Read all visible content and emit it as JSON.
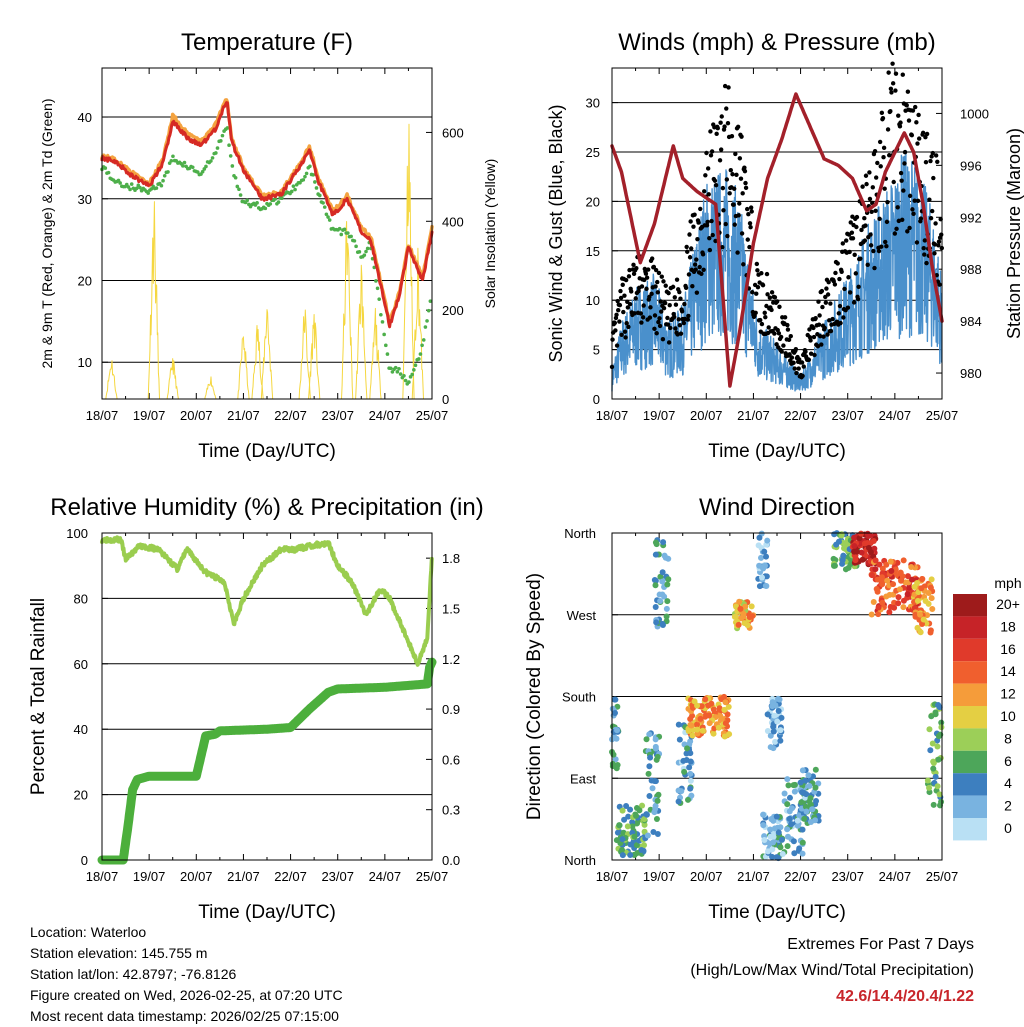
{
  "chart_data": [
    {
      "type": "line",
      "title": "Temperature (F)",
      "xlabel": "Time (Day/UTC)",
      "ylabel": "2m & 9m T (Red, Orange) & 2m Td (Green)",
      "y2label": "Solar Insolation (Yellow)",
      "x_ticks": [
        "18/07",
        "19/07",
        "20/07",
        "21/07",
        "22/07",
        "23/07",
        "24/07",
        "25/07"
      ],
      "ylim": [
        5.5,
        46
      ],
      "y_ticks": [
        10,
        20,
        30,
        40
      ],
      "y2lim": [
        0,
        745
      ],
      "y2_ticks": [
        0,
        200,
        400,
        600
      ],
      "series": [
        {
          "name": "2m T",
          "color": "#d62a24",
          "x": [
            0,
            0.3,
            0.6,
            1,
            1.3,
            1.5,
            1.8,
            2.1,
            2.4,
            2.65,
            2.75,
            3,
            3.4,
            3.8,
            4.2,
            4.4,
            4.6,
            4.9,
            5.2,
            5.5,
            5.7,
            6.1,
            6.3,
            6.5,
            6.8,
            7
          ],
          "y": [
            35,
            34.5,
            33,
            31.5,
            34.5,
            39.5,
            37.5,
            36.5,
            38.5,
            42,
            37,
            33.5,
            30,
            30.5,
            34,
            36,
            32,
            28,
            30,
            26,
            25,
            14.5,
            18,
            24,
            20,
            26
          ]
        },
        {
          "name": "9m T",
          "color": "#f4a340",
          "x": [
            0,
            0.3,
            0.6,
            1,
            1.3,
            1.5,
            1.8,
            2.1,
            2.4,
            2.65,
            2.75,
            3,
            3.4,
            3.8,
            4.2,
            4.4,
            4.6,
            4.9,
            5.2,
            5.5,
            5.7,
            6.1,
            6.3,
            6.5,
            6.8,
            7
          ],
          "y": [
            35.2,
            34.8,
            33.3,
            31.8,
            34.9,
            40.2,
            38,
            37,
            39,
            42.4,
            37.4,
            33.8,
            30.3,
            30.8,
            34.3,
            36.4,
            32.4,
            28.4,
            30.4,
            26.4,
            25.4,
            14.9,
            18.4,
            24.4,
            20.4,
            26.4
          ]
        },
        {
          "name": "2m Td",
          "color": "#4daf4a",
          "x": [
            0,
            0.3,
            0.6,
            1,
            1.3,
            1.5,
            1.8,
            2.1,
            2.4,
            2.65,
            2.75,
            3,
            3.4,
            3.8,
            4.2,
            4.4,
            4.6,
            4.9,
            5.2,
            5.5,
            5.7,
            6.1,
            6.3,
            6.5,
            6.8,
            7
          ],
          "y": [
            34,
            32,
            31.5,
            31,
            32,
            35,
            34,
            33,
            35.5,
            39,
            34,
            29.5,
            29,
            30,
            32,
            34,
            30.5,
            26,
            26,
            23,
            24.5,
            9,
            9,
            7.5,
            12,
            19
          ]
        }
      ],
      "solar_insolation": {
        "color": "#f5d740",
        "peaks": [
          [
            0.2,
            110
          ],
          [
            1.1,
            520
          ],
          [
            1.5,
            110
          ],
          [
            2.3,
            60
          ],
          [
            3.0,
            180
          ],
          [
            3.3,
            195
          ],
          [
            3.5,
            260
          ],
          [
            4.3,
            240
          ],
          [
            4.5,
            230
          ],
          [
            5.2,
            480
          ],
          [
            5.5,
            340
          ],
          [
            5.8,
            220
          ],
          [
            6.5,
            720
          ],
          [
            6.7,
            370
          ]
        ]
      }
    },
    {
      "type": "line",
      "title": "Winds (mph) & Pressure (mb)",
      "xlabel": "Time (Day/UTC)",
      "ylabel": "Sonic Wind & Gust (Blue, Black)",
      "y2label": "Station Pressure (Maroon)",
      "x_ticks": [
        "18/07",
        "19/07",
        "20/07",
        "21/07",
        "22/07",
        "23/07",
        "24/07",
        "25/07"
      ],
      "ylim": [
        0,
        33.5
      ],
      "y_ticks": [
        0,
        5,
        10,
        15,
        20,
        25,
        30
      ],
      "y2lim": [
        978.0,
        1003.5
      ],
      "y2_ticks": [
        980,
        984,
        988,
        992,
        996,
        1000
      ],
      "series": [
        {
          "name": "Sonic Wind",
          "color": "#4a90cc",
          "x": [
            0,
            0.2,
            0.5,
            0.9,
            1.2,
            1.5,
            2,
            2.4,
            2.7,
            3.1,
            3.4,
            4,
            4.5,
            5,
            5.4,
            5.9,
            6.2,
            6.5,
            6.8,
            7
          ],
          "y": [
            2,
            5,
            7,
            8,
            5,
            6,
            14,
            15,
            13,
            5,
            4,
            1.5,
            5,
            8,
            11,
            14,
            16,
            15,
            12,
            8
          ]
        },
        {
          "name": "Gust",
          "color": "#000000",
          "x": [
            0,
            0.2,
            0.5,
            0.9,
            1.2,
            1.5,
            2,
            2.4,
            2.7,
            3.1,
            3.4,
            4,
            4.5,
            5,
            5.4,
            5.9,
            6.2,
            6.5,
            6.8,
            7
          ],
          "y": [
            5,
            9,
            11,
            10.5,
            8,
            10,
            20,
            24,
            22,
            10,
            9,
            3,
            9,
            13,
            17,
            25,
            26,
            22,
            20,
            16
          ]
        },
        {
          "name": "Station Pressure",
          "color": "#a3202a",
          "x": [
            0,
            0.2,
            0.6,
            0.9,
            1.3,
            1.5,
            1.8,
            2.2,
            2.5,
            2.7,
            3.0,
            3.3,
            3.6,
            3.9,
            4.2,
            4.5,
            4.8,
            5.1,
            5.4,
            5.6,
            5.8,
            6.2,
            6.4,
            6.6,
            6.8,
            7
          ],
          "y": [
            997.5,
            995.5,
            988.5,
            991.5,
            997.5,
            995,
            994,
            993,
            979,
            983,
            990,
            995,
            998,
            1001.5,
            999,
            996.5,
            996,
            995,
            992.5,
            993,
            995.5,
            998.5,
            997,
            993,
            988,
            984
          ]
        }
      ]
    },
    {
      "type": "line",
      "title": "Relative Humidity (%) & Precipitation (in)",
      "xlabel": "Time (Day/UTC)",
      "ylabel": "Percent & Total Rainfall",
      "x_ticks": [
        "18/07",
        "19/07",
        "20/07",
        "21/07",
        "22/07",
        "23/07",
        "24/07",
        "25/07"
      ],
      "ylim": [
        0,
        100
      ],
      "y_ticks": [
        0,
        20,
        40,
        60,
        80,
        100
      ],
      "y2lim": [
        0,
        1.95
      ],
      "y2_ticks": [
        "0.0",
        "0.3",
        "0.6",
        "0.9",
        "1.2",
        "1.5",
        "1.8"
      ],
      "series": [
        {
          "name": "Relative Humidity",
          "color": "#9acd4f",
          "x": [
            0,
            0.4,
            0.5,
            0.8,
            1.2,
            1.6,
            1.8,
            2.2,
            2.6,
            2.8,
            3.0,
            3.4,
            3.8,
            4.1,
            4.4,
            4.8,
            5.0,
            5.3,
            5.6,
            5.9,
            6.1,
            6.4,
            6.7,
            6.9,
            7
          ],
          "y": [
            98,
            98,
            92,
            96,
            95,
            89,
            95,
            88,
            85,
            72,
            80,
            90,
            95,
            95,
            96,
            97,
            90,
            85,
            75,
            83,
            80,
            70,
            60,
            68,
            93
          ]
        },
        {
          "name": "Total Precipitation",
          "color": "#4caf3c",
          "x": [
            0,
            0.45,
            0.55,
            0.65,
            0.75,
            1.0,
            2.0,
            2.2,
            2.4,
            2.5,
            3.5,
            4.0,
            4.4,
            4.8,
            5.0,
            6.0,
            6.9,
            6.95,
            7
          ],
          "y": [
            0,
            0,
            0.2,
            0.42,
            0.48,
            0.5,
            0.5,
            0.74,
            0.75,
            0.77,
            0.78,
            0.79,
            0.9,
            1.0,
            1.02,
            1.03,
            1.05,
            1.15,
            1.18
          ]
        }
      ]
    },
    {
      "type": "scatter",
      "title": "Wind Direction",
      "xlabel": "Time (Day/UTC)",
      "ylabel": "Direction (Colored By Speed)",
      "x_ticks": [
        "18/07",
        "19/07",
        "20/07",
        "21/07",
        "22/07",
        "23/07",
        "24/07",
        "25/07"
      ],
      "y_ticks": [
        "North",
        "East",
        "South",
        "West",
        "North"
      ],
      "ylim": [
        0,
        360
      ],
      "clusters": [
        {
          "x0": 0.0,
          "x1": 0.15,
          "d0": 100,
          "d1": 180,
          "speed": 4
        },
        {
          "x0": 0.1,
          "x1": 0.7,
          "d0": 5,
          "d1": 60,
          "speed": 6
        },
        {
          "x0": 0.7,
          "x1": 1.0,
          "d0": 20,
          "d1": 140,
          "speed": 4
        },
        {
          "x0": 0.9,
          "x1": 1.2,
          "d0": 250,
          "d1": 355,
          "speed": 4
        },
        {
          "x0": 1.4,
          "x1": 1.7,
          "d0": 60,
          "d1": 150,
          "speed": 3
        },
        {
          "x0": 1.6,
          "x1": 2.5,
          "d0": 135,
          "d1": 180,
          "speed": 12
        },
        {
          "x0": 2.6,
          "x1": 3.0,
          "d0": 255,
          "d1": 285,
          "speed": 11
        },
        {
          "x0": 3.1,
          "x1": 3.3,
          "d0": 300,
          "d1": 360,
          "speed": 2
        },
        {
          "x0": 3.3,
          "x1": 3.6,
          "d0": 120,
          "d1": 180,
          "speed": 2
        },
        {
          "x0": 3.2,
          "x1": 3.6,
          "d0": 0,
          "d1": 50,
          "speed": 3
        },
        {
          "x0": 3.6,
          "x1": 4.1,
          "d0": 5,
          "d1": 90,
          "speed": 3
        },
        {
          "x0": 4.0,
          "x1": 4.4,
          "d0": 40,
          "d1": 100,
          "speed": 4
        },
        {
          "x0": 4.7,
          "x1": 5.2,
          "d0": 320,
          "d1": 360,
          "speed": 6
        },
        {
          "x0": 5.1,
          "x1": 5.6,
          "d0": 325,
          "d1": 360,
          "speed": 18
        },
        {
          "x0": 5.5,
          "x1": 6.5,
          "d0": 270,
          "d1": 330,
          "speed": 15
        },
        {
          "x0": 6.4,
          "x1": 6.8,
          "d0": 250,
          "d1": 310,
          "speed": 12
        },
        {
          "x0": 6.7,
          "x1": 7.0,
          "d0": 60,
          "d1": 180,
          "speed": 6
        }
      ],
      "colorbar": {
        "unit": "mph",
        "labels": [
          "20+",
          "18",
          "16",
          "14",
          "12",
          "10",
          "8",
          "6",
          "4",
          "2",
          "0"
        ],
        "colors": [
          "#9e1b1b",
          "#c62328",
          "#e03a2b",
          "#f05f2e",
          "#f59c3a",
          "#e4cf43",
          "#9ccf58",
          "#4da65a",
          "#3d7fbf",
          "#79b3e0",
          "#b9e0f4"
        ]
      }
    }
  ],
  "info": {
    "location": "Location: Waterloo",
    "elevation": "Station elevation: 145.755 m",
    "latlon": "Station lat/lon: 42.8797; -76.8126",
    "created": "Figure created on Wed, 2026-02-25, at 07:20 UTC",
    "recent": "Most recent data timestamp: 2026/02/25 07:15:00"
  },
  "extremes": {
    "title": "Extremes For Past 7 Days",
    "subtitle": "(High/Low/Max Wind/Total Precipitation)",
    "values": "42.6/14.4/20.4/1.22"
  }
}
